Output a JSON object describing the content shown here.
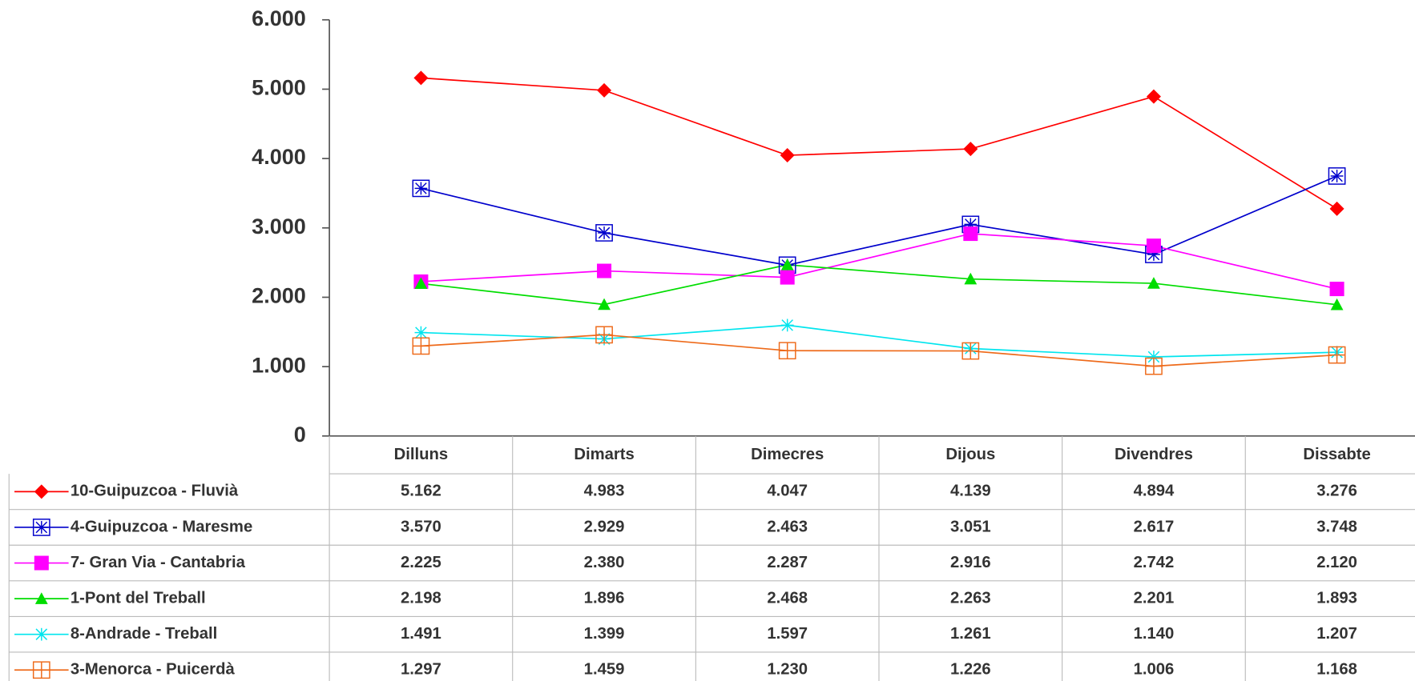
{
  "chart_data": {
    "type": "line",
    "categories": [
      "Dilluns",
      "Dimarts",
      "Dimecres",
      "Dijous",
      "Divendres",
      "Dissabte"
    ],
    "ylim": [
      0,
      6000
    ],
    "yticks": [
      0,
      {
        "value": 1000,
        "label": "1.000"
      },
      {
        "value": 2000,
        "label": "2.000"
      },
      {
        "value": 3000,
        "label": "3.000"
      },
      {
        "value": 4000,
        "label": "4.000"
      },
      {
        "value": 5000,
        "label": "5.000"
      },
      {
        "value": 6000,
        "label": "6.000"
      }
    ],
    "series": [
      {
        "name": "10-Guipuzcoa - Fluvià",
        "color": "#ff0000",
        "marker": "diamond",
        "values": [
          5162,
          4983,
          4047,
          4139,
          4894,
          3276
        ],
        "value_labels": [
          "5.162",
          "4.983",
          "4.047",
          "4.139",
          "4.894",
          "3.276"
        ]
      },
      {
        "name": "4-Guipuzcoa - Maresme",
        "color": "#0000cc",
        "marker": "box-star",
        "values": [
          3570,
          2929,
          2463,
          3051,
          2617,
          3748
        ],
        "value_labels": [
          "3.570",
          "2.929",
          "2.463",
          "3.051",
          "2.617",
          "3.748"
        ]
      },
      {
        "name": "7- Gran Via - Cantabria",
        "color": "#ff00ff",
        "marker": "square",
        "values": [
          2225,
          2380,
          2287,
          2916,
          2742,
          2120
        ],
        "value_labels": [
          "2.225",
          "2.380",
          "2.287",
          "2.916",
          "2.742",
          "2.120"
        ]
      },
      {
        "name": "1-Pont del Treball",
        "color": "#00dd00",
        "marker": "triangle",
        "values": [
          2198,
          1896,
          2468,
          2263,
          2201,
          1893
        ],
        "value_labels": [
          "2.198",
          "1.896",
          "2.468",
          "2.263",
          "2.201",
          "1.893"
        ]
      },
      {
        "name": "8-Andrade - Treball",
        "color": "#00e5ee",
        "marker": "star",
        "values": [
          1491,
          1399,
          1597,
          1261,
          1140,
          1207
        ],
        "value_labels": [
          "1.491",
          "1.399",
          "1.597",
          "1.261",
          "1.140",
          "1.207"
        ]
      },
      {
        "name": "3-Menorca - Puicerdà",
        "color": "#ee6a1a",
        "marker": "box-plus",
        "values": [
          1297,
          1459,
          1230,
          1226,
          1006,
          1168
        ],
        "value_labels": [
          "1.297",
          "1.459",
          "1.230",
          "1.226",
          "1.006",
          "1.168"
        ]
      }
    ]
  }
}
